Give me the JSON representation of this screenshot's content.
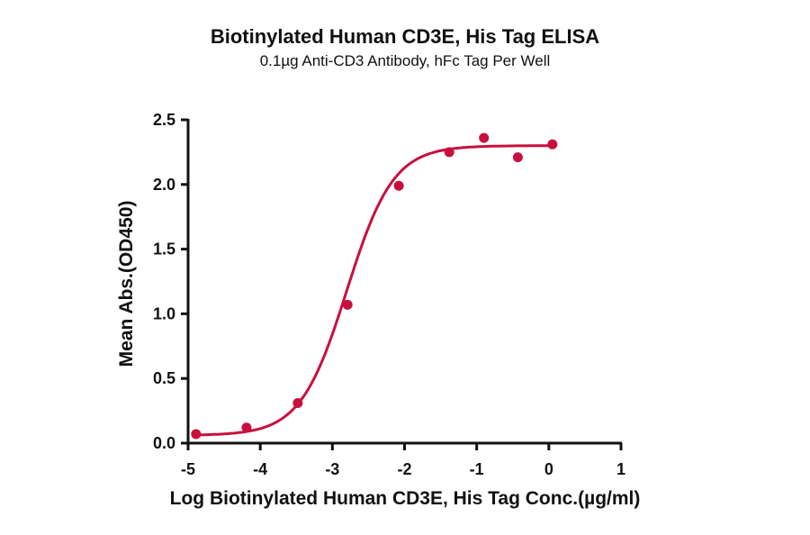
{
  "title": "Biotinylated Human CD3E, His Tag ELISA",
  "subtitle": "0.1µg Anti-CD3 Antibody, hFc Tag Per Well",
  "colors": {
    "series": "#c8103e",
    "axis": "#111111"
  },
  "chart_data": {
    "type": "scatter",
    "title": "Biotinylated Human CD3E, His Tag ELISA",
    "subtitle": "0.1µg Anti-CD3 Antibody, hFc Tag Per Well",
    "xlabel": "Log Biotinylated Human CD3E, His Tag Conc.(µg/ml)",
    "ylabel": "Mean Abs.(OD450)",
    "xlim": [
      -5,
      1
    ],
    "ylim": [
      0,
      2.5
    ],
    "xticks": [
      "-5",
      "-4",
      "-3",
      "-2",
      "-1",
      "0",
      "1"
    ],
    "yticks": [
      "0.0",
      "0.5",
      "1.0",
      "1.5",
      "2.0",
      "2.5"
    ],
    "grid": false,
    "legend": null,
    "series": [
      {
        "name": "Biotinylated Human CD3E, His Tag",
        "x": [
          -4.89,
          -4.19,
          -3.48,
          -2.79,
          -2.08,
          -1.38,
          -0.9,
          -0.43,
          0.05
        ],
        "y": [
          0.07,
          0.12,
          0.31,
          1.07,
          1.99,
          2.25,
          2.36,
          2.21,
          2.31
        ],
        "fit": "4-parameter logistic",
        "fit_params": {
          "bottom": 0.06,
          "top": 2.3,
          "log_ec50": -2.8,
          "hill": 1.35
        }
      }
    ]
  }
}
